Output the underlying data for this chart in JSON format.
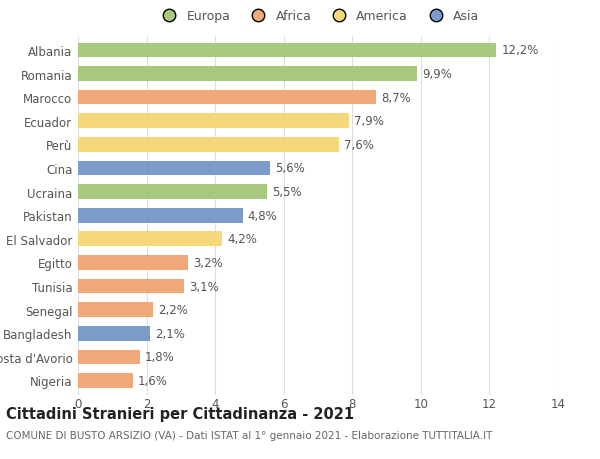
{
  "countries": [
    "Albania",
    "Romania",
    "Marocco",
    "Ecuador",
    "Perù",
    "Cina",
    "Ucraina",
    "Pakistan",
    "El Salvador",
    "Egitto",
    "Tunisia",
    "Senegal",
    "Bangladesh",
    "Costa d'Avorio",
    "Nigeria"
  ],
  "values": [
    12.2,
    9.9,
    8.7,
    7.9,
    7.6,
    5.6,
    5.5,
    4.8,
    4.2,
    3.2,
    3.1,
    2.2,
    2.1,
    1.8,
    1.6
  ],
  "continents": [
    "Europa",
    "Europa",
    "Africa",
    "America",
    "America",
    "Asia",
    "Europa",
    "Asia",
    "America",
    "Africa",
    "Africa",
    "Africa",
    "Asia",
    "Africa",
    "Africa"
  ],
  "colors": {
    "Europa": "#a8c87e",
    "Africa": "#f0a878",
    "America": "#f5d87a",
    "Asia": "#7a9cc9"
  },
  "legend_order": [
    "Europa",
    "Africa",
    "America",
    "Asia"
  ],
  "xlim": [
    0,
    14
  ],
  "xticks": [
    0,
    2,
    4,
    6,
    8,
    10,
    12,
    14
  ],
  "title": "Cittadini Stranieri per Cittadinanza - 2021",
  "subtitle": "COMUNE DI BUSTO ARSIZIO (VA) - Dati ISTAT al 1° gennaio 2021 - Elaborazione TUTTITALIA.IT",
  "background_color": "#ffffff",
  "bar_height": 0.62,
  "grid_color": "#dddddd",
  "label_fontsize": 8.5,
  "title_fontsize": 10.5,
  "subtitle_fontsize": 7.5,
  "ytick_fontsize": 8.5,
  "xtick_fontsize": 8.5
}
